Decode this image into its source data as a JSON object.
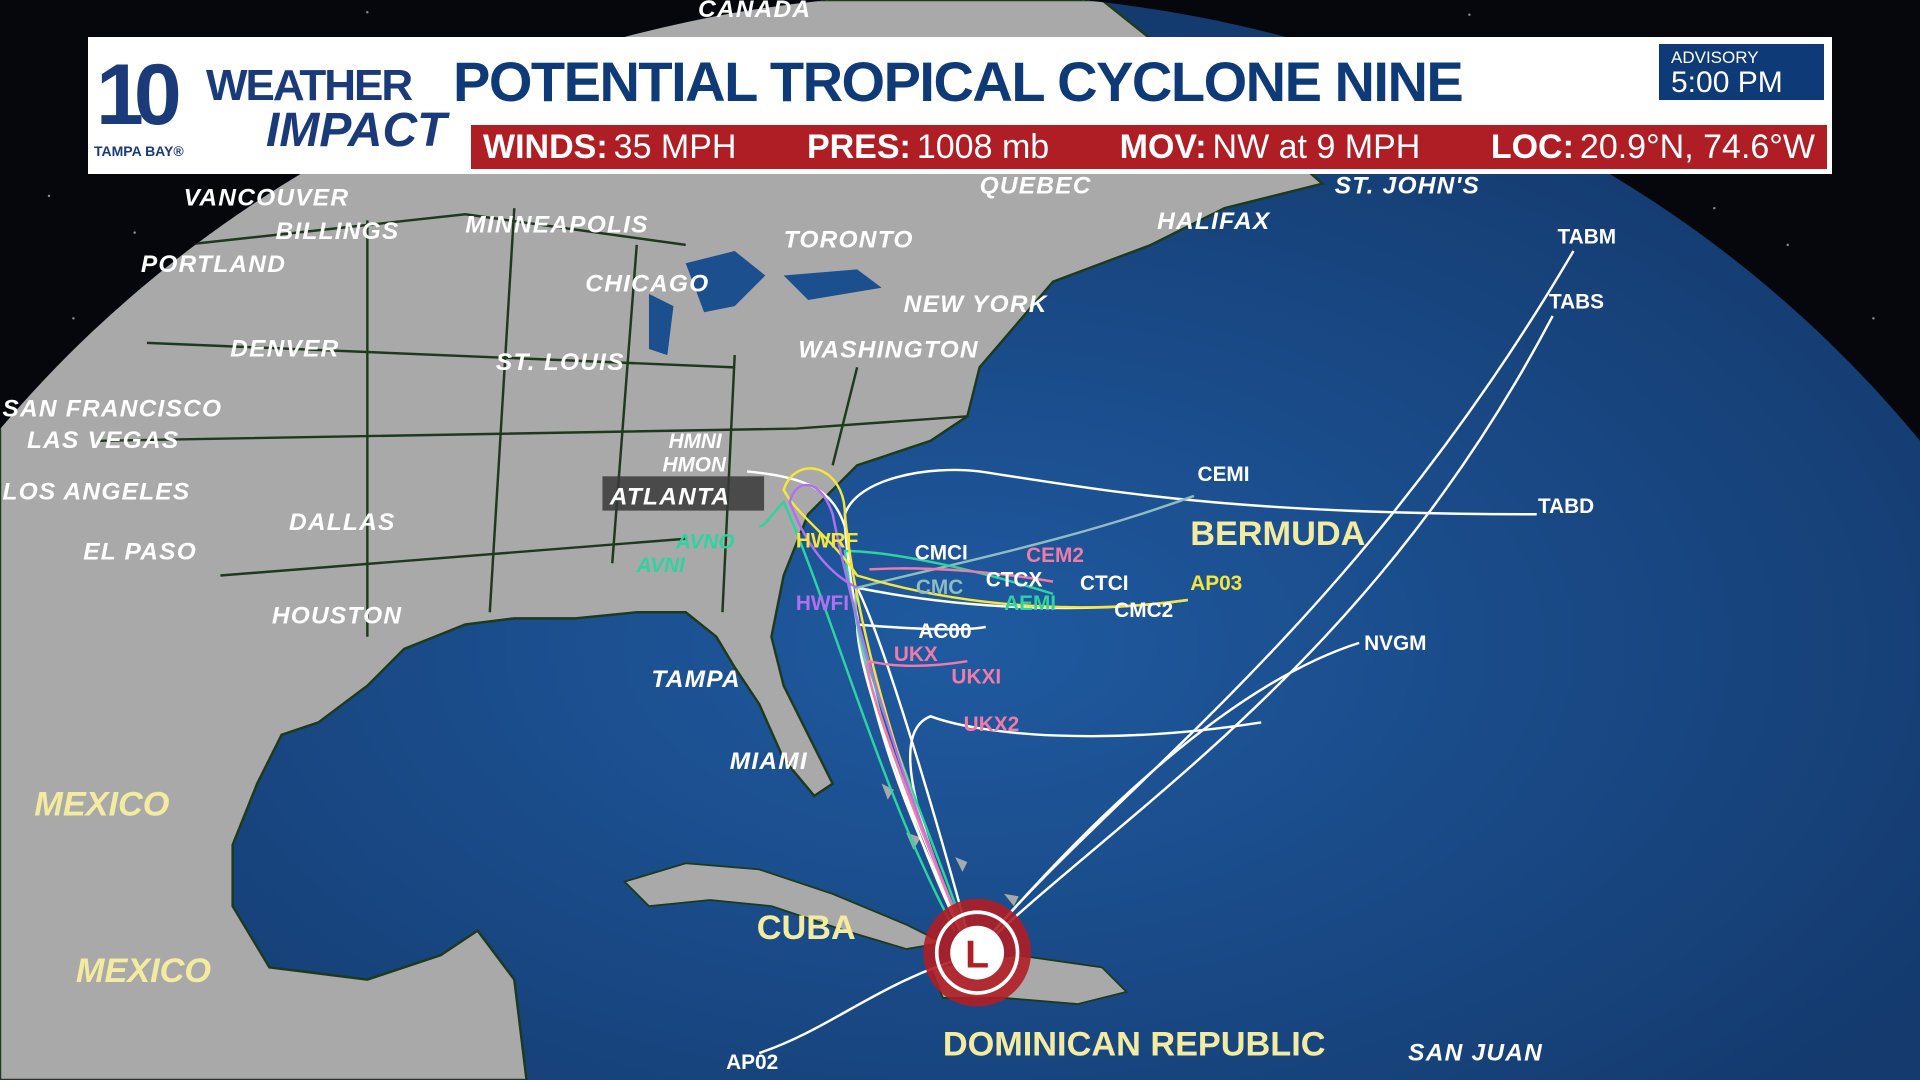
{
  "header": {
    "logo": {
      "number": "10",
      "weather": "WEATHER",
      "impact": "IMPACT",
      "station": "TAMPA BAY®"
    },
    "title": "POTENTIAL TROPICAL CYCLONE NINE",
    "advisory_label": "ADVISORY",
    "advisory_time": "5:00 PM",
    "stats": [
      {
        "label": "WINDS:",
        "value": "35 MPH"
      },
      {
        "label": "PRES:",
        "value": "1008 mb"
      },
      {
        "label": "MOV:",
        "value": "NW at 9 MPH"
      },
      {
        "label": "LOC:",
        "value": "20.9°N, 74.6°W"
      }
    ]
  },
  "map": {
    "storm_symbol": "L",
    "colors": {
      "ocean": "#1b4f8e",
      "land": "#a9a9a9",
      "storm": "#b01e25",
      "header_blue": "#0f3a78",
      "header_red": "#b01e25"
    },
    "cities": [
      "BILLINGS",
      "MINNEAPOLIS",
      "TORONTO",
      "QUEBEC",
      "HALIFAX",
      "ST. JOHN'S",
      "CHICAGO",
      "NEW YORK",
      "WASHINGTON",
      "DENVER",
      "ST. LOUIS",
      "PORTLAND",
      "VANCOUVER",
      "SAN FRANCISCO",
      "LAS VEGAS",
      "LOS ANGELES",
      "ATLANTA",
      "DALLAS",
      "EL PASO",
      "HOUSTON",
      "TAMPA",
      "MIAMI",
      "SAN JUAN",
      "CANADA"
    ],
    "countries": [
      "BERMUDA",
      "MEXICO",
      "MEXICO",
      "CUBA",
      "DOMINICAN REPUBLIC"
    ],
    "models": [
      {
        "name": "HMNI",
        "color": "#ffffff"
      },
      {
        "name": "HMON",
        "color": "#ffffff"
      },
      {
        "name": "AVNO",
        "color": "#2ed3a0"
      },
      {
        "name": "AVNI",
        "color": "#2ed3a0"
      },
      {
        "name": "HWRF",
        "color": "#f5e63a"
      },
      {
        "name": "HWFI",
        "color": "#b070f0"
      },
      {
        "name": "CMCI",
        "color": "#ffffff"
      },
      {
        "name": "CMC",
        "color": "#8fbcc0"
      },
      {
        "name": "CEM2",
        "color": "#f07aa8"
      },
      {
        "name": "CTCX",
        "color": "#ffffff"
      },
      {
        "name": "AEMI",
        "color": "#2ed3a0"
      },
      {
        "name": "CTCI",
        "color": "#ffffff"
      },
      {
        "name": "AP03",
        "color": "#f5e63a"
      },
      {
        "name": "CMC2",
        "color": "#ffffff"
      },
      {
        "name": "AC00",
        "color": "#ffffff"
      },
      {
        "name": "UKX",
        "color": "#f07aa8"
      },
      {
        "name": "UKXI",
        "color": "#f07aa8"
      },
      {
        "name": "UKX2",
        "color": "#f07aa8"
      },
      {
        "name": "CEMI",
        "color": "#ffffff"
      },
      {
        "name": "TABD",
        "color": "#ffffff"
      },
      {
        "name": "TABM",
        "color": "#ffffff"
      },
      {
        "name": "TABS",
        "color": "#ffffff"
      },
      {
        "name": "NVGM",
        "color": "#ffffff"
      },
      {
        "name": "AP02",
        "color": "#ffffff"
      }
    ]
  }
}
